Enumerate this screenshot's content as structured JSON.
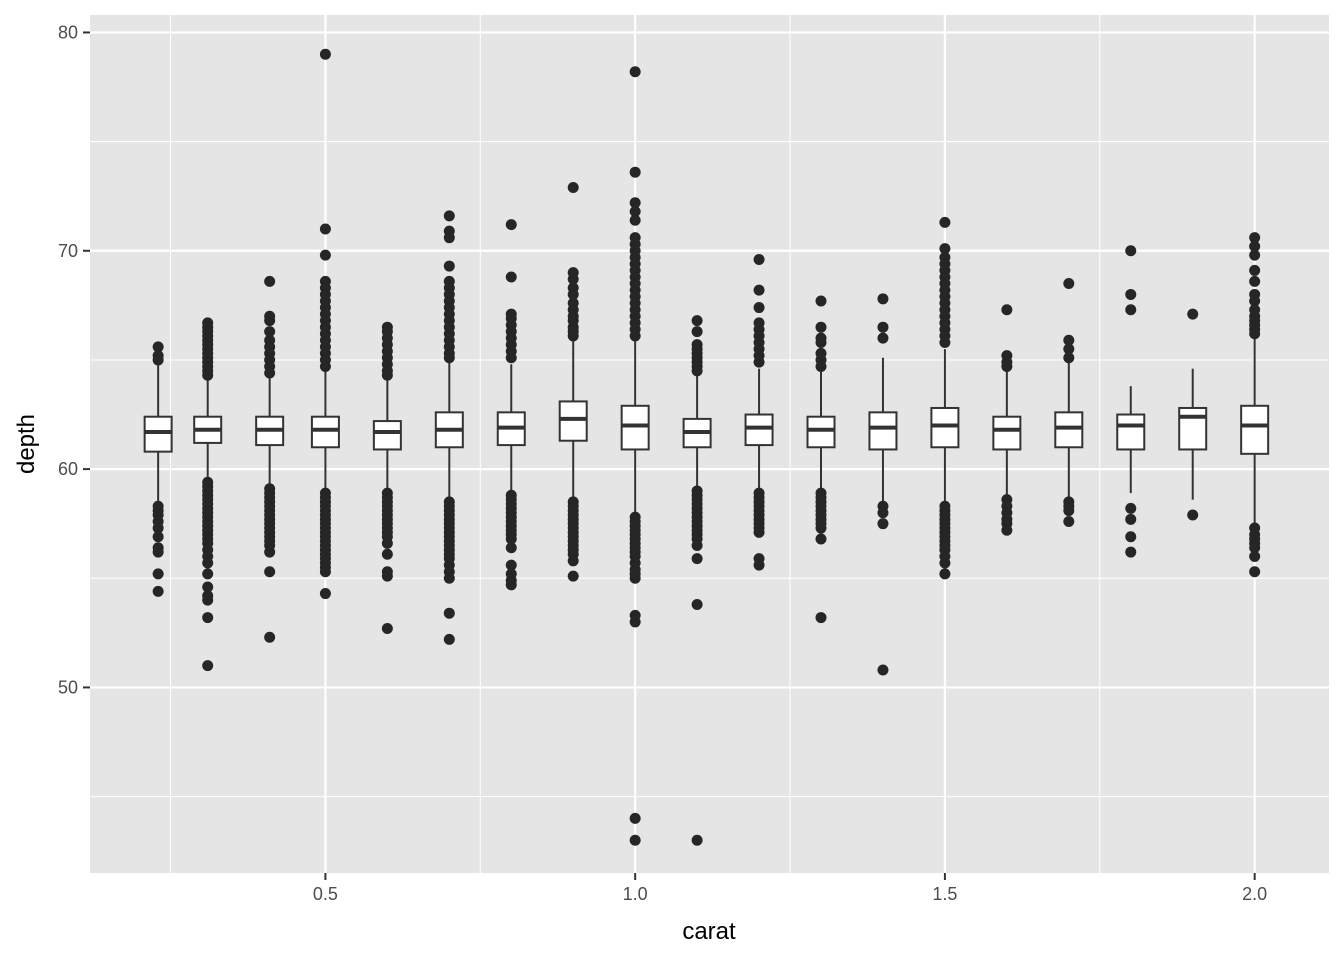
{
  "chart_data": {
    "type": "boxplot",
    "xlabel": "carat",
    "ylabel": "depth",
    "xlim": [
      0.12,
      2.12
    ],
    "ylim": [
      41.5,
      80.8
    ],
    "x_ticks": [
      0.5,
      1.0,
      1.5,
      2.0
    ],
    "x_tick_labels": [
      "0.5",
      "1.0",
      "1.5",
      "2.0"
    ],
    "y_ticks": [
      50,
      60,
      70,
      80
    ],
    "y_tick_labels": [
      "50",
      "60",
      "70",
      "80"
    ],
    "grid": true,
    "background": "#e5e5e5",
    "grid_color": "#ffffff",
    "box_fill": "#ffffff",
    "line_color": "#333333",
    "point_color": "#262626",
    "boxes": [
      {
        "x": 0.23,
        "q1": 60.8,
        "median": 61.7,
        "q3": 62.4,
        "lower": 58.4,
        "upper": 64.8,
        "outliers": [
          65.6,
          65.2,
          65.0,
          58.3,
          58.1,
          57.9,
          57.6,
          57.3,
          56.9,
          56.4,
          56.2,
          55.2,
          54.4
        ]
      },
      {
        "x": 0.31,
        "q1": 61.2,
        "median": 61.8,
        "q3": 62.4,
        "lower": 59.5,
        "upper": 64.2,
        "outliers": [
          66.7,
          66.5,
          66.3,
          66.1,
          65.9,
          65.7,
          65.5,
          65.3,
          65.1,
          64.9,
          64.7,
          64.5,
          64.3,
          59.4,
          59.2,
          59.0,
          58.8,
          58.6,
          58.4,
          58.2,
          58.0,
          57.8,
          57.6,
          57.4,
          57.2,
          57.0,
          56.8,
          56.6,
          56.3,
          56.0,
          55.7,
          55.2,
          54.6,
          54.2,
          54.0,
          53.2,
          51.0
        ]
      },
      {
        "x": 0.41,
        "q1": 61.1,
        "median": 61.8,
        "q3": 62.4,
        "lower": 59.2,
        "upper": 64.3,
        "outliers": [
          68.6,
          67.0,
          66.8,
          66.3,
          65.9,
          65.6,
          65.3,
          65.0,
          64.7,
          64.4,
          59.1,
          58.9,
          58.7,
          58.5,
          58.3,
          58.1,
          57.9,
          57.7,
          57.5,
          57.3,
          57.1,
          56.9,
          56.7,
          56.5,
          56.2,
          55.3,
          52.3
        ]
      },
      {
        "x": 0.5,
        "q1": 61.0,
        "median": 61.8,
        "q3": 62.4,
        "lower": 59.0,
        "upper": 64.5,
        "outliers": [
          79.0,
          71.0,
          69.8,
          68.6,
          68.3,
          68.0,
          67.7,
          67.4,
          67.1,
          66.8,
          66.5,
          66.2,
          65.9,
          65.6,
          65.3,
          65.0,
          64.7,
          58.9,
          58.7,
          58.5,
          58.3,
          58.1,
          57.9,
          57.7,
          57.5,
          57.3,
          57.1,
          56.9,
          56.7,
          56.5,
          56.3,
          56.1,
          55.9,
          55.7,
          55.5,
          55.3,
          54.3
        ]
      },
      {
        "x": 0.6,
        "q1": 60.9,
        "median": 61.7,
        "q3": 62.2,
        "lower": 59.0,
        "upper": 64.2,
        "outliers": [
          66.5,
          66.3,
          66.0,
          65.7,
          65.4,
          65.1,
          64.8,
          64.5,
          64.3,
          58.9,
          58.7,
          58.5,
          58.3,
          58.1,
          57.9,
          57.7,
          57.5,
          57.3,
          57.1,
          56.9,
          56.6,
          56.1,
          55.3,
          55.1,
          52.7
        ]
      },
      {
        "x": 0.7,
        "q1": 61.0,
        "median": 61.8,
        "q3": 62.6,
        "lower": 58.6,
        "upper": 65.0,
        "outliers": [
          71.6,
          70.9,
          70.6,
          69.3,
          68.6,
          68.3,
          68.0,
          67.7,
          67.4,
          67.1,
          66.8,
          66.5,
          66.2,
          65.9,
          65.6,
          65.3,
          65.1,
          58.5,
          58.3,
          58.1,
          57.9,
          57.7,
          57.5,
          57.3,
          57.1,
          56.9,
          56.7,
          56.5,
          56.3,
          56.1,
          55.9,
          55.6,
          55.3,
          55.0,
          53.4,
          52.2
        ]
      },
      {
        "x": 0.8,
        "q1": 61.1,
        "median": 61.9,
        "q3": 62.6,
        "lower": 59.0,
        "upper": 64.8,
        "outliers": [
          71.2,
          68.8,
          67.1,
          66.9,
          66.6,
          66.3,
          66.0,
          65.7,
          65.4,
          65.1,
          58.8,
          58.6,
          58.4,
          58.2,
          58.0,
          57.8,
          57.6,
          57.4,
          57.2,
          57.0,
          56.8,
          56.4,
          55.6,
          55.2,
          54.9,
          54.7
        ]
      },
      {
        "x": 0.9,
        "q1": 61.3,
        "median": 62.3,
        "q3": 63.1,
        "lower": 58.6,
        "upper": 65.9,
        "outliers": [
          72.9,
          69.0,
          68.7,
          68.3,
          68.0,
          67.6,
          67.3,
          67.0,
          66.8,
          66.5,
          66.3,
          66.1,
          58.5,
          58.3,
          58.1,
          57.9,
          57.7,
          57.5,
          57.3,
          57.1,
          56.9,
          56.7,
          56.5,
          56.3,
          56.1,
          55.8,
          55.1
        ]
      },
      {
        "x": 1.0,
        "q1": 60.9,
        "median": 62.0,
        "q3": 62.9,
        "lower": 58.0,
        "upper": 66.0,
        "outliers": [
          78.2,
          73.6,
          72.2,
          71.8,
          71.4,
          70.6,
          70.3,
          70.0,
          69.7,
          69.4,
          69.1,
          68.8,
          68.5,
          68.2,
          67.9,
          67.6,
          67.3,
          67.0,
          66.7,
          66.4,
          66.1,
          57.8,
          57.6,
          57.4,
          57.2,
          57.0,
          56.8,
          56.6,
          56.4,
          56.2,
          56.0,
          55.7,
          55.4,
          55.2,
          55.0,
          53.3,
          53.0,
          44.0,
          43.0
        ]
      },
      {
        "x": 1.1,
        "q1": 61.0,
        "median": 61.7,
        "q3": 62.3,
        "lower": 59.1,
        "upper": 64.3,
        "outliers": [
          66.8,
          66.3,
          65.7,
          65.5,
          65.3,
          65.1,
          64.9,
          64.7,
          64.5,
          59.0,
          58.8,
          58.6,
          58.4,
          58.2,
          58.0,
          57.8,
          57.6,
          57.4,
          57.2,
          57.0,
          56.8,
          56.5,
          55.9,
          53.8,
          43.0
        ]
      },
      {
        "x": 1.2,
        "q1": 61.1,
        "median": 61.9,
        "q3": 62.5,
        "lower": 59.0,
        "upper": 64.6,
        "outliers": [
          69.6,
          68.2,
          67.4,
          66.7,
          66.4,
          66.1,
          65.8,
          65.5,
          65.2,
          64.9,
          58.9,
          58.7,
          58.5,
          58.3,
          58.1,
          57.9,
          57.7,
          57.5,
          57.3,
          57.1,
          55.9,
          55.6
        ]
      },
      {
        "x": 1.3,
        "q1": 61.0,
        "median": 61.8,
        "q3": 62.4,
        "lower": 59.0,
        "upper": 64.6,
        "outliers": [
          67.7,
          66.5,
          66.0,
          65.8,
          65.3,
          65.0,
          64.7,
          58.9,
          58.7,
          58.5,
          58.3,
          58.1,
          57.9,
          57.7,
          57.5,
          57.3,
          56.8,
          53.2
        ]
      },
      {
        "x": 1.4,
        "q1": 60.9,
        "median": 61.9,
        "q3": 62.6,
        "lower": 58.4,
        "upper": 65.1,
        "outliers": [
          67.8,
          66.5,
          66.0,
          58.3,
          58.0,
          57.5,
          50.8
        ]
      },
      {
        "x": 1.5,
        "q1": 61.0,
        "median": 62.0,
        "q3": 62.8,
        "lower": 58.5,
        "upper": 65.5,
        "outliers": [
          71.3,
          70.1,
          69.7,
          69.4,
          69.1,
          68.8,
          68.5,
          68.2,
          67.9,
          67.6,
          67.3,
          67.0,
          66.7,
          66.4,
          66.1,
          65.8,
          58.3,
          58.1,
          57.9,
          57.7,
          57.5,
          57.3,
          57.1,
          56.9,
          56.7,
          56.5,
          56.3,
          56.0,
          55.7,
          55.2
        ]
      },
      {
        "x": 1.6,
        "q1": 60.9,
        "median": 61.8,
        "q3": 62.4,
        "lower": 58.7,
        "upper": 64.6,
        "outliers": [
          67.3,
          65.2,
          64.9,
          64.7,
          58.6,
          58.3,
          58.0,
          57.7,
          57.5,
          57.2
        ]
      },
      {
        "x": 1.7,
        "q1": 61.0,
        "median": 61.9,
        "q3": 62.6,
        "lower": 58.6,
        "upper": 65.0,
        "outliers": [
          68.5,
          65.9,
          65.5,
          65.1,
          58.5,
          58.3,
          58.1,
          57.6
        ]
      },
      {
        "x": 1.8,
        "q1": 60.9,
        "median": 62.0,
        "q3": 62.5,
        "lower": 58.9,
        "upper": 63.8,
        "outliers": [
          70.0,
          68.0,
          67.3,
          58.2,
          57.7,
          56.9,
          56.2
        ]
      },
      {
        "x": 1.9,
        "q1": 60.9,
        "median": 62.4,
        "q3": 62.8,
        "lower": 58.6,
        "upper": 64.6,
        "outliers": [
          67.1,
          57.9
        ]
      },
      {
        "x": 2.0,
        "q1": 60.7,
        "median": 62.0,
        "q3": 62.9,
        "lower": 57.4,
        "upper": 66.0,
        "outliers": [
          70.6,
          70.2,
          69.8,
          69.1,
          68.6,
          68.0,
          67.7,
          67.3,
          67.0,
          66.8,
          66.6,
          66.4,
          66.2,
          57.3,
          57.0,
          56.8,
          56.6,
          56.4,
          56.0,
          55.3
        ]
      }
    ]
  }
}
